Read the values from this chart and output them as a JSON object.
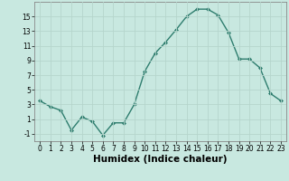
{
  "x": [
    0,
    1,
    2,
    3,
    4,
    5,
    6,
    7,
    8,
    9,
    10,
    11,
    12,
    13,
    14,
    15,
    16,
    17,
    18,
    19,
    20,
    21,
    22,
    23
  ],
  "y": [
    3.5,
    2.7,
    2.2,
    -0.5,
    1.3,
    0.7,
    -1.2,
    0.5,
    0.5,
    3.0,
    7.5,
    10.0,
    11.5,
    13.2,
    15.0,
    16.0,
    16.0,
    15.2,
    12.8,
    9.2,
    9.2,
    8.0,
    4.5,
    3.5
  ],
  "line_color": "#2e7d6e",
  "marker": "D",
  "marker_size": 2.0,
  "background_color": "#c8e8e0",
  "grid_color": "#b5d5cc",
  "xlabel": "Humidex (Indice chaleur)",
  "xlim": [
    -0.5,
    23.5
  ],
  "ylim": [
    -2,
    17
  ],
  "yticks": [
    -1,
    1,
    3,
    5,
    7,
    9,
    11,
    13,
    15
  ],
  "xticks": [
    0,
    1,
    2,
    3,
    4,
    5,
    6,
    7,
    8,
    9,
    10,
    11,
    12,
    13,
    14,
    15,
    16,
    17,
    18,
    19,
    20,
    21,
    22,
    23
  ],
  "tick_fontsize": 5.5,
  "xlabel_fontsize": 7.5,
  "linewidth": 1.0
}
